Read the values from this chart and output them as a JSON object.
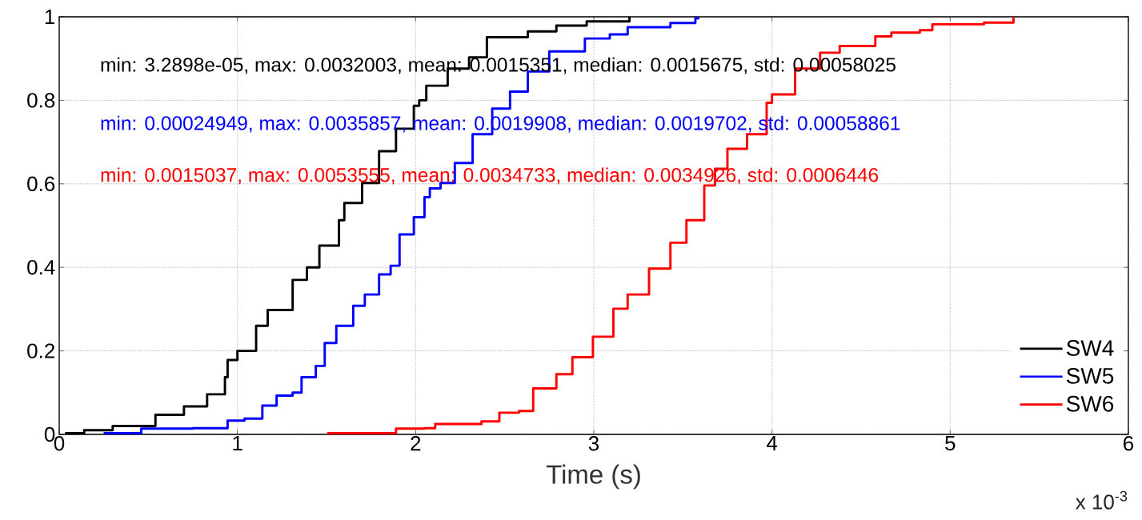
{
  "chart_data": {
    "type": "step",
    "xlabel": "Time (s)",
    "xlim": [
      0,
      6
    ],
    "xticks": [
      0,
      1,
      2,
      3,
      4,
      5,
      6
    ],
    "ylim": [
      0,
      1
    ],
    "yticks": [
      0,
      0.2,
      0.4,
      0.6,
      0.8,
      1
    ],
    "grid": true,
    "legend": "bottom right",
    "line_style": "solid",
    "annotations": [
      "min: 3.2898e-05, max: 0.0032003, mean: 0.0015351, median: 0.0015675, std: 0.00058025",
      "min: 0.00024949, max: 0.0035857, mean: 0.0019908, median: 0.0019702, std: 0.00058861",
      "min: 0.0015037, max: 0.0053555, mean: 0.0034733, median: 0.0034926, std: 0.0006446",
      "x 10$^{-3}$"
    ],
    "series": [
      {
        "name": "SW4",
        "color": "#000000",
        "x": [
          0.033,
          0.14,
          0.3,
          0.54,
          0.7,
          0.83,
          0.93,
          0.945,
          1.0,
          1.105,
          1.17,
          1.31,
          1.39,
          1.46,
          1.57,
          1.6,
          1.7,
          1.795,
          1.89,
          1.99,
          2.02,
          2.06,
          2.18,
          2.3,
          2.4,
          2.63,
          2.79,
          2.96,
          3.2003
        ],
        "values": [
          0.003,
          0.01,
          0.02,
          0.047,
          0.067,
          0.096,
          0.137,
          0.178,
          0.2,
          0.26,
          0.298,
          0.37,
          0.4,
          0.452,
          0.513,
          0.554,
          0.602,
          0.678,
          0.732,
          0.787,
          0.8,
          0.835,
          0.876,
          0.903,
          0.951,
          0.965,
          0.979,
          0.989,
          1
        ]
      },
      {
        "name": "SW5",
        "color": "#0000ff",
        "x": [
          0.2495,
          0.46,
          0.75,
          0.945,
          1.04,
          1.14,
          1.22,
          1.31,
          1.36,
          1.44,
          1.49,
          1.555,
          1.65,
          1.715,
          1.795,
          1.86,
          1.91,
          1.99,
          2.05,
          2.08,
          2.14,
          2.22,
          2.32,
          2.43,
          2.53,
          2.63,
          2.75,
          2.95,
          3.09,
          3.19,
          3.43,
          3.57,
          3.5857
        ],
        "values": [
          0.003,
          0.014,
          0.015,
          0.033,
          0.038,
          0.069,
          0.093,
          0.1,
          0.137,
          0.164,
          0.219,
          0.26,
          0.308,
          0.335,
          0.383,
          0.404,
          0.479,
          0.52,
          0.568,
          0.589,
          0.602,
          0.65,
          0.719,
          0.78,
          0.821,
          0.869,
          0.917,
          0.948,
          0.958,
          0.975,
          0.985,
          0.996,
          1
        ]
      },
      {
        "name": "SW6",
        "color": "#ff0000",
        "x": [
          1.5037,
          1.89,
          2.05,
          2.11,
          2.37,
          2.47,
          2.58,
          2.66,
          2.79,
          2.88,
          2.995,
          3.11,
          3.19,
          3.31,
          3.43,
          3.52,
          3.62,
          3.68,
          3.75,
          3.86,
          3.97,
          4.0,
          4.13,
          4.27,
          4.38,
          4.58,
          4.67,
          4.83,
          4.9,
          5.19,
          5.3555
        ],
        "values": [
          0.003,
          0.014,
          0.015,
          0.025,
          0.031,
          0.052,
          0.056,
          0.11,
          0.144,
          0.185,
          0.234,
          0.301,
          0.335,
          0.397,
          0.459,
          0.513,
          0.596,
          0.636,
          0.684,
          0.719,
          0.794,
          0.814,
          0.876,
          0.914,
          0.93,
          0.953,
          0.962,
          0.968,
          0.982,
          0.986,
          1
        ]
      }
    ]
  }
}
